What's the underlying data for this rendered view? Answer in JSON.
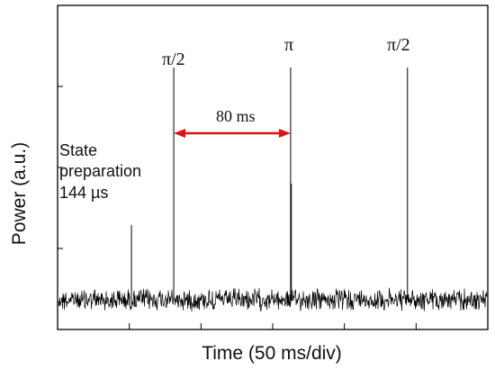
{
  "chart_data": {
    "type": "line",
    "title": "",
    "xlabel": "Time (50 ms/div)",
    "ylabel": "Power (a.u.)",
    "x_divisions": 6,
    "y_divisions": 4,
    "y_ticks": 4,
    "grid": false,
    "series": [
      {
        "baseline": 0,
        "noise_amplitude": 0.1,
        "pulses": [
          {
            "x": 1.03,
            "y": 1.0
          },
          {
            "x": 1.62,
            "y": 3.1
          },
          {
            "x": 3.25,
            "y": 3.1
          },
          {
            "x": 3.26,
            "y": 1.55
          },
          {
            "x": 4.88,
            "y": 3.1
          }
        ]
      }
    ],
    "annotations": {
      "pulse_labels": [
        {
          "text": "π/2",
          "x": 1.62
        },
        {
          "text": "π",
          "x": 3.25
        },
        {
          "text": "π/2",
          "x": 4.88
        }
      ],
      "interval": {
        "from": 1.62,
        "to": 3.25,
        "label": "80 ms",
        "color": "#e01010"
      },
      "state_prep": [
        "State",
        "preparation",
        "144 µs"
      ]
    }
  }
}
